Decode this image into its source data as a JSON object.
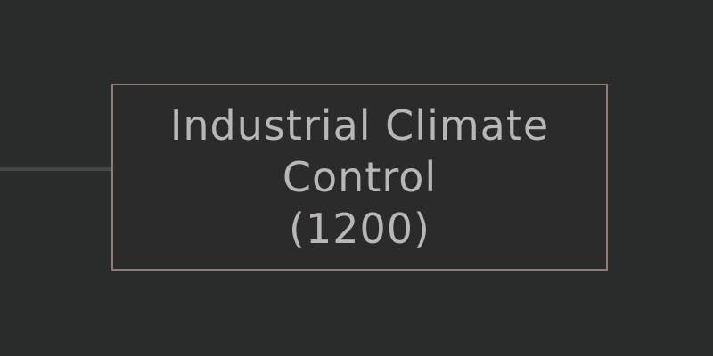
{
  "colors": {
    "background": "#2a2b2b",
    "box_border": "#8a7d7b",
    "text": "#b8b6b6",
    "connector": "#4a4c4c"
  },
  "node": {
    "lines": [
      "Industrial Climate",
      "Control",
      "(1200)"
    ]
  }
}
